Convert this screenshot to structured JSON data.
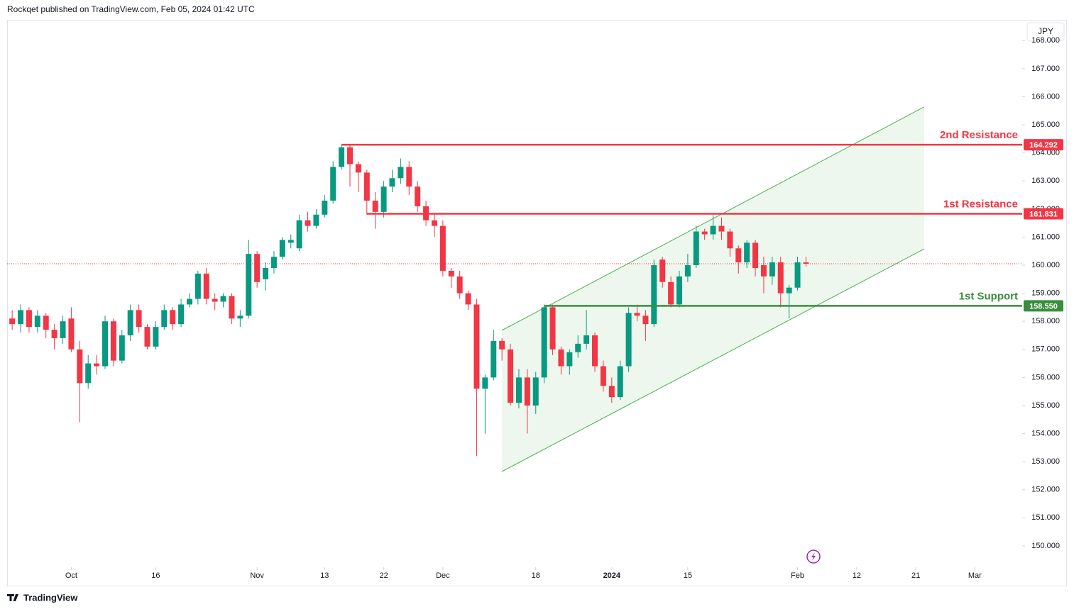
{
  "header": {
    "text": "Rockqet published on TradingView.com, Feb 05, 2024 01:42 UTC"
  },
  "footer": {
    "brand": "TradingView"
  },
  "currency_button": "JPY",
  "chart_data": {
    "type": "candlestick",
    "up_color": "#089981",
    "down_color": "#f23645",
    "x": [
      0,
      1,
      2,
      3,
      4,
      5,
      6,
      7,
      8,
      9,
      10,
      11,
      12,
      13,
      14,
      15,
      16,
      17,
      18,
      19,
      20,
      21,
      22,
      23,
      24,
      25,
      26,
      27,
      28,
      29,
      30,
      31,
      32,
      33,
      34,
      35,
      36,
      37,
      38,
      39,
      40,
      41,
      42,
      43,
      44,
      45,
      46,
      47,
      48,
      49,
      50,
      51,
      52,
      53,
      54,
      55,
      56,
      57,
      58,
      59,
      60,
      61,
      62,
      63,
      64,
      65,
      66,
      67,
      68,
      69,
      70,
      71,
      72,
      73,
      74,
      75,
      76,
      77,
      78,
      79,
      80,
      81,
      82,
      83,
      84,
      85,
      86,
      87,
      88,
      89,
      90,
      91,
      92,
      93,
      94
    ],
    "open": [
      158.1,
      157.9,
      158.4,
      157.8,
      158.2,
      157.7,
      157.4,
      158.1,
      157.0,
      155.8,
      156.5,
      156.4,
      158.0,
      156.6,
      157.5,
      158.4,
      157.8,
      157.1,
      157.8,
      158.4,
      157.9,
      158.6,
      158.8,
      159.7,
      158.8,
      158.7,
      158.9,
      158.1,
      158.2,
      160.4,
      159.5,
      159.9,
      160.3,
      160.8,
      160.6,
      161.6,
      161.4,
      161.8,
      162.3,
      163.5,
      164.2,
      163.6,
      163.3,
      162.3,
      161.9,
      162.8,
      163.1,
      163.5,
      162.8,
      162.1,
      161.6,
      161.4,
      159.8,
      159.6,
      159.0,
      158.6,
      155.6,
      156.0,
      157.3,
      157.0,
      155.1,
      156.0,
      155.0,
      156.0,
      158.5,
      157.0,
      156.4,
      156.9,
      157.2,
      157.5,
      156.4,
      155.7,
      155.3,
      156.4,
      158.3,
      158.2,
      157.9,
      160.2,
      159.4,
      158.6,
      159.6,
      160.0,
      161.2,
      161.1,
      161.4,
      161.2,
      160.6,
      160.1,
      160.8,
      160.0,
      159.6,
      160.1,
      159.0,
      159.2,
      160.1
    ],
    "high": [
      158.4,
      158.6,
      158.5,
      158.4,
      158.3,
      157.9,
      158.2,
      158.5,
      157.3,
      156.8,
      156.8,
      158.2,
      158.1,
      157.7,
      158.6,
      158.6,
      157.9,
      158.0,
      158.6,
      158.5,
      158.8,
      159.0,
      159.8,
      159.9,
      159.0,
      159.0,
      159.0,
      158.4,
      160.9,
      160.5,
      160.1,
      160.5,
      161.0,
      161.1,
      161.8,
      161.9,
      162.0,
      162.5,
      163.7,
      164.292,
      164.3,
      163.7,
      163.4,
      162.6,
      163.0,
      163.4,
      163.8,
      163.7,
      163.0,
      162.3,
      161.8,
      161.6,
      159.9,
      159.8,
      159.1,
      158.8,
      156.1,
      157.7,
      157.4,
      157.2,
      156.3,
      156.3,
      156.2,
      158.6,
      158.6,
      157.1,
      157.0,
      157.5,
      158.4,
      157.6,
      156.6,
      156.0,
      156.6,
      158.5,
      158.6,
      158.4,
      160.2,
      160.3,
      159.6,
      159.8,
      160.4,
      161.4,
      161.3,
      161.8,
      161.7,
      161.3,
      160.7,
      160.9,
      160.9,
      160.3,
      160.3,
      160.3,
      159.3,
      160.3,
      160.3
    ],
    "low": [
      157.7,
      157.6,
      157.6,
      157.6,
      157.4,
      157.0,
      157.2,
      156.9,
      154.4,
      155.6,
      156.1,
      156.3,
      156.4,
      156.5,
      157.3,
      157.6,
      157.0,
      157.0,
      157.7,
      157.7,
      157.8,
      158.5,
      158.6,
      158.6,
      158.4,
      158.5,
      157.9,
      157.8,
      158.1,
      159.2,
      159.1,
      159.7,
      160.2,
      160.6,
      160.5,
      161.2,
      161.3,
      161.7,
      162.2,
      163.4,
      162.8,
      162.6,
      161.8,
      161.3,
      161.7,
      162.6,
      162.9,
      162.5,
      161.9,
      161.4,
      161.0,
      159.6,
      159.2,
      158.8,
      158.4,
      153.2,
      154.0,
      155.9,
      156.6,
      155.0,
      154.9,
      154.0,
      154.7,
      155.8,
      156.8,
      156.1,
      156.1,
      156.7,
      157.0,
      156.2,
      155.5,
      155.1,
      155.2,
      156.2,
      158.0,
      157.3,
      157.8,
      159.2,
      158.5,
      158.5,
      159.4,
      159.9,
      160.9,
      160.9,
      160.9,
      160.3,
      159.7,
      159.9,
      159.6,
      159.0,
      159.3,
      158.5,
      158.1,
      159.1,
      159.95
    ],
    "close": [
      157.9,
      158.4,
      157.8,
      158.2,
      157.7,
      157.4,
      158.0,
      157.0,
      155.8,
      156.5,
      156.4,
      158.0,
      156.6,
      157.5,
      158.4,
      157.8,
      157.1,
      157.8,
      158.4,
      157.9,
      158.6,
      158.8,
      159.7,
      158.8,
      158.7,
      158.9,
      158.1,
      158.2,
      160.4,
      159.4,
      159.9,
      160.3,
      160.9,
      160.9,
      161.6,
      161.4,
      161.8,
      162.3,
      163.5,
      164.2,
      163.6,
      163.3,
      162.3,
      161.9,
      162.8,
      163.1,
      163.5,
      162.8,
      162.1,
      161.6,
      161.4,
      159.8,
      159.6,
      159.0,
      158.6,
      155.6,
      156.0,
      157.3,
      157.0,
      155.1,
      156.0,
      155.0,
      156.0,
      158.5,
      157.0,
      156.4,
      156.9,
      157.2,
      157.5,
      156.4,
      155.7,
      155.3,
      156.4,
      158.3,
      158.2,
      157.9,
      160.0,
      159.4,
      158.6,
      159.6,
      160.0,
      161.2,
      161.1,
      161.4,
      161.2,
      160.6,
      160.1,
      160.8,
      159.9,
      159.6,
      160.1,
      159.0,
      159.2,
      160.1,
      160.05
    ],
    "xlim": [
      -0.6,
      119.6
    ],
    "ylim": [
      149.24,
      168.69
    ],
    "xticks": [
      {
        "value": 7,
        "label": "Oct"
      },
      {
        "value": 17,
        "label": "16"
      },
      {
        "value": 29,
        "label": "Nov"
      },
      {
        "value": 37,
        "label": "13"
      },
      {
        "value": 44,
        "label": "22"
      },
      {
        "value": 51,
        "label": "Dec"
      },
      {
        "value": 62,
        "label": "18"
      },
      {
        "value": 71,
        "label": "2024"
      },
      {
        "value": 80,
        "label": "15"
      },
      {
        "value": 93,
        "label": "Feb"
      },
      {
        "value": 100,
        "label": "12"
      },
      {
        "value": 107,
        "label": "21"
      },
      {
        "value": 114,
        "label": "Mar"
      }
    ],
    "yticks": [
      {
        "value": 150,
        "label": "150.000"
      },
      {
        "value": 151,
        "label": "151.000"
      },
      {
        "value": 152,
        "label": "152.000"
      },
      {
        "value": 153,
        "label": "153.000"
      },
      {
        "value": 154,
        "label": "154.000"
      },
      {
        "value": 155,
        "label": "155.000"
      },
      {
        "value": 156,
        "label": "156.000"
      },
      {
        "value": 157,
        "label": "157.000"
      },
      {
        "value": 158,
        "label": "158.000"
      },
      {
        "value": 159,
        "label": "159.000"
      },
      {
        "value": 160,
        "label": "160.000"
      },
      {
        "value": 161,
        "label": "161.000"
      },
      {
        "value": 162,
        "label": "162.000"
      },
      {
        "value": 163,
        "label": "163.000"
      },
      {
        "value": 164,
        "label": "164.000"
      },
      {
        "value": 165,
        "label": "165.000"
      },
      {
        "value": 166,
        "label": "166.000"
      },
      {
        "value": 167,
        "label": "167.000"
      },
      {
        "value": 168,
        "label": "168.000"
      }
    ],
    "last_price": 160.05,
    "levels": [
      {
        "name": "2nd Resistance",
        "value": 164.292,
        "value_label": "164.292",
        "start": 39,
        "color": "#f23645"
      },
      {
        "name": "1st Resistance",
        "value": 161.831,
        "value_label": "161.831",
        "start": 42,
        "color": "#f23645"
      },
      {
        "name": "1st Support",
        "value": 158.55,
        "value_label": "158.550",
        "start": 63,
        "color": "#388e3c"
      }
    ],
    "channel": {
      "color": "#4caf50",
      "x": [
        58,
        108
      ],
      "upper": [
        157.68,
        165.64
      ],
      "lower": [
        152.65,
        160.58
      ]
    }
  }
}
